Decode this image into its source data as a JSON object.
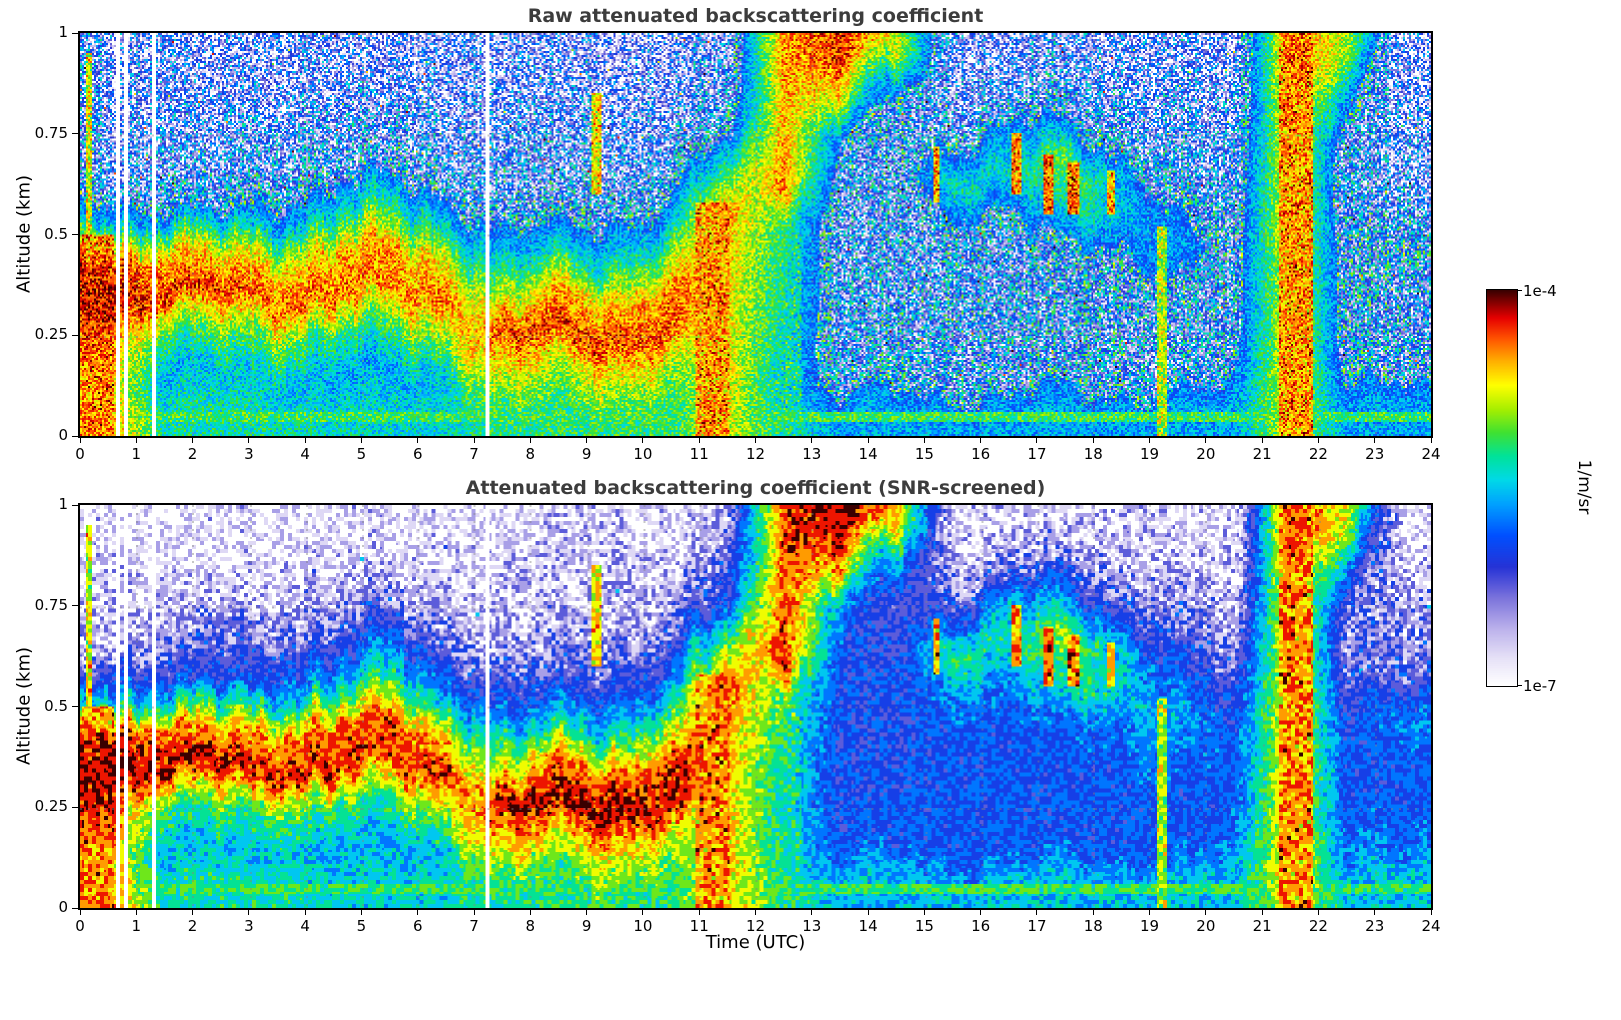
{
  "figure": {
    "background": "#ffffff",
    "xlabel": "Time (UTC)",
    "ylabel": "Altitude (km)"
  },
  "style": {
    "background": "#ffffff",
    "title_color": "#3c3c3c",
    "axis_color": "#000000",
    "grid_color": "rgba(130,130,130,0.45)",
    "colormap_stops": [
      [
        0.0,
        "#ffffff"
      ],
      [
        0.07,
        "#e6e1f7"
      ],
      [
        0.14,
        "#beb4ec"
      ],
      [
        0.22,
        "#7d74dc"
      ],
      [
        0.3,
        "#2633d6"
      ],
      [
        0.38,
        "#0050ff"
      ],
      [
        0.46,
        "#00a2ff"
      ],
      [
        0.52,
        "#00d9e8"
      ],
      [
        0.58,
        "#00e29a"
      ],
      [
        0.64,
        "#3fe131"
      ],
      [
        0.7,
        "#a8ef00"
      ],
      [
        0.76,
        "#ffff00"
      ],
      [
        0.82,
        "#ffb000"
      ],
      [
        0.88,
        "#ff5000"
      ],
      [
        0.93,
        "#e60000"
      ],
      [
        1.0,
        "#3a0000"
      ]
    ]
  },
  "chart_data": [
    {
      "type": "heatmap",
      "title": "Raw attenuated backscattering coefficient",
      "xlabel": "Time (UTC)",
      "ylabel": "Altitude (km)",
      "x_range": [
        0,
        24
      ],
      "y_range_km": [
        0,
        1
      ],
      "x_tick_labels": [
        "0",
        "1",
        "2",
        "3",
        "4",
        "5",
        "6",
        "7",
        "8",
        "9",
        "10",
        "11",
        "12",
        "13",
        "14",
        "15",
        "16",
        "17",
        "18",
        "19",
        "20",
        "21",
        "22",
        "23",
        "24"
      ],
      "y_tick_values": [
        0,
        0.25,
        0.5,
        0.75,
        1
      ],
      "y_tick_labels": [
        "0",
        "0.25",
        "0.5",
        "0.75",
        "1"
      ],
      "value_scale": "log10 attenuated backscatter (1/m/sr)",
      "value_range_log10": [
        -7,
        -4
      ],
      "colorbar": {
        "label": "1/m/sr",
        "top_tick": "1e-4",
        "bottom_tick": "1e-7"
      },
      "grid_hours": [
        0.5,
        1.5,
        2.5,
        3.5,
        4.5,
        5.5,
        6.5,
        7.5,
        8.5,
        9.5,
        10.5,
        11.5,
        12.5,
        13.5,
        14.5,
        15.5,
        16.5,
        17.5,
        18.5,
        19.5,
        20.5,
        21.5,
        22.5,
        23.5
      ],
      "grid_altitudes_km": [
        0.95,
        0.85,
        0.75,
        0.65,
        0.55,
        0.45,
        0.35,
        0.25,
        0.15,
        0.05
      ],
      "values_log10": [
        [
          -6.3,
          -6.4,
          -6.5,
          -6.5,
          -6.5,
          -6.5,
          -6.5,
          -6.5,
          -6.5,
          -6.5,
          -6.5,
          -6.3,
          -4.5,
          -4.3,
          -4.8,
          -6.4,
          -6.4,
          -6.4,
          -6.4,
          -6.4,
          -6.5,
          -4.4,
          -4.9,
          -6.5
        ],
        [
          -6.3,
          -6.4,
          -6.4,
          -6.4,
          -6.4,
          -6.4,
          -6.4,
          -6.4,
          -6.4,
          -6.4,
          -6.4,
          -6.2,
          -4.6,
          -4.8,
          -5.8,
          -6.3,
          -6.2,
          -6.2,
          -6.3,
          -6.3,
          -6.4,
          -4.5,
          -5.6,
          -6.4
        ],
        [
          -6.3,
          -6.3,
          -6.3,
          -6.3,
          -6.3,
          -6.2,
          -6.3,
          -6.3,
          -6.3,
          -6.3,
          -6.3,
          -6.0,
          -4.5,
          -5.8,
          -6.1,
          -6.0,
          -5.6,
          -5.8,
          -6.1,
          -6.2,
          -6.3,
          -4.6,
          -6.1,
          -6.3
        ],
        [
          -6.2,
          -6.2,
          -6.2,
          -6.1,
          -6.0,
          -5.9,
          -6.1,
          -6.2,
          -6.2,
          -6.2,
          -6.1,
          -5.3,
          -4.4,
          -6.0,
          -6.1,
          -5.3,
          -5.4,
          -5.0,
          -5.6,
          -6.1,
          -6.2,
          -4.6,
          -6.2,
          -6.2
        ],
        [
          -5.5,
          -5.8,
          -5.9,
          -5.6,
          -5.4,
          -5.2,
          -5.6,
          -6.0,
          -6.0,
          -5.9,
          -5.7,
          -4.5,
          -5.2,
          -6.1,
          -6.1,
          -5.8,
          -5.9,
          -5.3,
          -5.5,
          -5.8,
          -6.1,
          -4.6,
          -6.1,
          -6.1
        ],
        [
          -4.3,
          -4.6,
          -4.8,
          -4.7,
          -4.6,
          -4.5,
          -4.8,
          -5.6,
          -5.5,
          -5.4,
          -5.0,
          -4.6,
          -5.3,
          -6.1,
          -6.1,
          -6.0,
          -6.0,
          -5.9,
          -5.9,
          -5.6,
          -6.0,
          -4.7,
          -6.0,
          -5.8
        ],
        [
          -4.2,
          -4.3,
          -4.3,
          -4.4,
          -4.4,
          -4.5,
          -4.4,
          -5.0,
          -4.6,
          -4.7,
          -4.4,
          -4.7,
          -5.3,
          -6.1,
          -6.1,
          -6.0,
          -6.0,
          -6.0,
          -6.0,
          -5.9,
          -6.0,
          -4.7,
          -6.0,
          -6.0
        ],
        [
          -4.4,
          -5.2,
          -5.0,
          -5.1,
          -5.2,
          -5.2,
          -4.9,
          -4.3,
          -4.3,
          -4.3,
          -4.4,
          -4.7,
          -5.4,
          -6.1,
          -6.0,
          -6.0,
          -6.0,
          -6.0,
          -6.0,
          -6.0,
          -6.0,
          -4.7,
          -6.0,
          -6.0
        ],
        [
          -4.6,
          -5.6,
          -5.5,
          -5.5,
          -5.6,
          -5.6,
          -5.5,
          -4.7,
          -4.9,
          -4.8,
          -5.0,
          -4.7,
          -5.5,
          -6.0,
          -6.0,
          -6.0,
          -6.0,
          -6.0,
          -6.0,
          -6.0,
          -5.9,
          -4.6,
          -5.9,
          -5.9
        ],
        [
          -4.5,
          -5.3,
          -5.3,
          -5.3,
          -5.4,
          -5.4,
          -5.4,
          -5.2,
          -5.2,
          -5.2,
          -5.2,
          -4.8,
          -5.3,
          -5.6,
          -5.6,
          -5.6,
          -5.6,
          -5.6,
          -5.6,
          -5.6,
          -5.6,
          -4.8,
          -5.6,
          -5.6
        ]
      ],
      "events": [
        {
          "t0": 0.05,
          "t1": 0.62,
          "z0": 0.0,
          "z1": 0.5,
          "v": -4.5
        },
        {
          "t0": 0.1,
          "t1": 0.22,
          "z0": 0.4,
          "z1": 0.95,
          "v": -4.8
        },
        {
          "t0": 9.1,
          "t1": 9.25,
          "z0": 0.6,
          "z1": 0.85,
          "v": -4.7
        },
        {
          "t0": 10.95,
          "t1": 11.55,
          "z0": 0.0,
          "z1": 0.58,
          "v": -4.5
        },
        {
          "t0": 12.2,
          "t1": 12.8,
          "z0": 0.0,
          "z1": 0.5,
          "v": -5.35
        },
        {
          "t0": 15.15,
          "t1": 15.28,
          "z0": 0.58,
          "z1": 0.72,
          "v": -4.5
        },
        {
          "t0": 16.55,
          "t1": 16.72,
          "z0": 0.6,
          "z1": 0.75,
          "v": -4.5
        },
        {
          "t0": 17.1,
          "t1": 17.28,
          "z0": 0.55,
          "z1": 0.7,
          "v": -4.4
        },
        {
          "t0": 17.55,
          "t1": 17.75,
          "z0": 0.55,
          "z1": 0.68,
          "v": -4.4
        },
        {
          "t0": 18.25,
          "t1": 18.38,
          "z0": 0.55,
          "z1": 0.66,
          "v": -4.6
        },
        {
          "t0": 19.15,
          "t1": 19.3,
          "z0": 0.0,
          "z1": 0.52,
          "v": -4.9
        },
        {
          "t0": 21.3,
          "t1": 21.9,
          "z0": 0.0,
          "z1": 1.0,
          "v": -4.5
        }
      ],
      "gap_hours": [
        0.66,
        0.82,
        1.3,
        7.25
      ],
      "surface_layer": {
        "z0": 0.035,
        "z1": 0.06,
        "v": -5.15
      },
      "bottom_layer": {
        "z1": 0.02,
        "v": -5.7
      },
      "noise": {
        "seed": 101,
        "block": 1,
        "clear_threshold": -5.8,
        "clear_amp": 0.95,
        "layer_amp": 0.3,
        "column_amp": 0.5,
        "speck_prob": 0.005,
        "speck_boost": 1.4
      },
      "quantize_step": 0
    },
    {
      "type": "heatmap",
      "title": "Attenuated backscattering coefficient (SNR-screened)",
      "xlabel": "Time (UTC)",
      "ylabel": "Altitude (km)",
      "x_range": [
        0,
        24
      ],
      "y_range_km": [
        0,
        1
      ],
      "x_tick_labels": [
        "0",
        "1",
        "2",
        "3",
        "4",
        "5",
        "6",
        "7",
        "8",
        "9",
        "10",
        "11",
        "12",
        "13",
        "14",
        "15",
        "16",
        "17",
        "18",
        "19",
        "20",
        "21",
        "22",
        "23",
        "24"
      ],
      "y_tick_values": [
        0,
        0.25,
        0.5,
        0.75,
        1
      ],
      "y_tick_labels": [
        "0",
        "0.25",
        "0.5",
        "0.75",
        "1"
      ],
      "value_scale": "log10 attenuated backscatter (1/m/sr)",
      "value_range_log10": [
        -7,
        -4
      ],
      "colorbar": {
        "label": "1/m/sr",
        "top_tick": "1e-4",
        "bottom_tick": "1e-7"
      },
      "grid_hours": [
        0.5,
        1.5,
        2.5,
        3.5,
        4.5,
        5.5,
        6.5,
        7.5,
        8.5,
        9.5,
        10.5,
        11.5,
        12.5,
        13.5,
        14.5,
        15.5,
        16.5,
        17.5,
        18.5,
        19.5,
        20.5,
        21.5,
        22.5,
        23.5
      ],
      "grid_altitudes_km": [
        0.95,
        0.85,
        0.75,
        0.65,
        0.55,
        0.45,
        0.35,
        0.25,
        0.15,
        0.05
      ],
      "values_log10": [
        [
          -6.9,
          -6.9,
          -6.9,
          -6.9,
          -6.9,
          -6.9,
          -6.9,
          -6.9,
          -6.8,
          -6.8,
          -6.9,
          -6.6,
          -4.3,
          -4.1,
          -4.6,
          -6.8,
          -6.8,
          -6.8,
          -6.8,
          -6.8,
          -6.9,
          -4.3,
          -4.8,
          -6.9
        ],
        [
          -6.8,
          -6.8,
          -6.9,
          -6.8,
          -6.8,
          -6.8,
          -6.8,
          -6.8,
          -6.7,
          -6.6,
          -6.8,
          -6.3,
          -4.4,
          -4.6,
          -5.7,
          -6.6,
          -6.4,
          -6.4,
          -6.6,
          -6.7,
          -6.8,
          -4.4,
          -5.6,
          -6.8
        ],
        [
          -6.8,
          -6.7,
          -6.7,
          -6.6,
          -6.5,
          -6.4,
          -6.6,
          -6.8,
          -6.7,
          -6.7,
          -6.6,
          -6.0,
          -4.3,
          -5.7,
          -6.2,
          -6.1,
          -5.5,
          -5.7,
          -6.2,
          -6.4,
          -6.7,
          -4.5,
          -6.3,
          -6.6
        ],
        [
          -6.5,
          -6.4,
          -6.3,
          -6.2,
          -6.1,
          -5.9,
          -6.2,
          -6.6,
          -6.5,
          -6.4,
          -6.2,
          -5.2,
          -4.2,
          -5.9,
          -6.1,
          -5.2,
          -5.3,
          -4.9,
          -5.5,
          -6.2,
          -6.5,
          -4.5,
          -6.4,
          -6.4
        ],
        [
          -5.6,
          -5.9,
          -6.0,
          -5.7,
          -5.5,
          -5.2,
          -5.7,
          -6.2,
          -6.2,
          -6.0,
          -5.7,
          -4.3,
          -5.1,
          -6.0,
          -6.0,
          -5.7,
          -5.8,
          -5.2,
          -5.4,
          -5.8,
          -6.2,
          -4.5,
          -6.2,
          -6.2
        ],
        [
          -4.2,
          -4.5,
          -4.7,
          -4.6,
          -4.4,
          -4.3,
          -4.7,
          -5.7,
          -5.5,
          -5.4,
          -4.9,
          -4.5,
          -5.2,
          -6.0,
          -6.0,
          -5.9,
          -5.9,
          -5.8,
          -5.8,
          -5.5,
          -6.0,
          -4.6,
          -6.0,
          -5.7
        ],
        [
          -4.1,
          -4.1,
          -4.1,
          -4.2,
          -4.2,
          -4.3,
          -4.2,
          -5.0,
          -4.4,
          -4.5,
          -4.2,
          -4.6,
          -5.3,
          -6.0,
          -6.0,
          -5.9,
          -5.9,
          -5.9,
          -5.9,
          -5.8,
          -5.9,
          -4.6,
          -5.9,
          -5.9
        ],
        [
          -4.3,
          -5.2,
          -5.0,
          -5.1,
          -5.2,
          -5.2,
          -4.9,
          -4.1,
          -4.1,
          -4.1,
          -4.2,
          -4.6,
          -5.4,
          -6.0,
          -5.9,
          -5.9,
          -5.9,
          -5.9,
          -5.9,
          -5.9,
          -5.9,
          -4.6,
          -5.9,
          -5.9
        ],
        [
          -4.6,
          -5.6,
          -5.5,
          -5.5,
          -5.6,
          -5.6,
          -5.5,
          -4.6,
          -4.8,
          -4.7,
          -5.0,
          -4.6,
          -5.4,
          -5.9,
          -5.9,
          -5.9,
          -5.9,
          -5.9,
          -5.9,
          -5.9,
          -5.8,
          -4.5,
          -5.8,
          -5.8
        ],
        [
          -4.4,
          -5.3,
          -5.3,
          -5.3,
          -5.4,
          -5.4,
          -5.4,
          -5.2,
          -5.2,
          -5.2,
          -5.2,
          -4.7,
          -5.2,
          -5.5,
          -5.5,
          -5.5,
          -5.5,
          -5.5,
          -5.5,
          -5.5,
          -5.5,
          -4.7,
          -5.5,
          -5.5
        ]
      ],
      "events": [
        {
          "t0": 0.05,
          "t1": 0.62,
          "z0": 0.0,
          "z1": 0.5,
          "v": -4.5
        },
        {
          "t0": 0.1,
          "t1": 0.22,
          "z0": 0.4,
          "z1": 0.95,
          "v": -4.8
        },
        {
          "t0": 9.1,
          "t1": 9.25,
          "z0": 0.6,
          "z1": 0.85,
          "v": -4.7
        },
        {
          "t0": 10.95,
          "t1": 11.55,
          "z0": 0.0,
          "z1": 0.58,
          "v": -4.5
        },
        {
          "t0": 12.2,
          "t1": 12.8,
          "z0": 0.0,
          "z1": 0.5,
          "v": -5.35
        },
        {
          "t0": 15.15,
          "t1": 15.28,
          "z0": 0.58,
          "z1": 0.72,
          "v": -4.5
        },
        {
          "t0": 16.55,
          "t1": 16.72,
          "z0": 0.6,
          "z1": 0.75,
          "v": -4.5
        },
        {
          "t0": 17.1,
          "t1": 17.28,
          "z0": 0.55,
          "z1": 0.7,
          "v": -4.4
        },
        {
          "t0": 17.55,
          "t1": 17.75,
          "z0": 0.55,
          "z1": 0.68,
          "v": -4.4
        },
        {
          "t0": 18.25,
          "t1": 18.38,
          "z0": 0.55,
          "z1": 0.66,
          "v": -4.6
        },
        {
          "t0": 19.15,
          "t1": 19.3,
          "z0": 0.0,
          "z1": 0.52,
          "v": -4.9
        },
        {
          "t0": 21.3,
          "t1": 21.9,
          "z0": 0.0,
          "z1": 1.0,
          "v": -4.5
        }
      ],
      "gap_hours": [
        0.66,
        0.82,
        1.3,
        7.25
      ],
      "surface_layer": {
        "z0": 0.035,
        "z1": 0.06,
        "v": -5.15
      },
      "bottom_layer": {
        "z1": 0.02,
        "v": -5.7
      },
      "noise": {
        "seed": 202,
        "block": 2,
        "clear_threshold": -6.2,
        "clear_amp": 0.5,
        "layer_amp": 0.25,
        "column_amp": 0.15,
        "speck_prob": 0.002,
        "speck_boost": 0.8
      },
      "quantize_step": 0.25
    }
  ]
}
